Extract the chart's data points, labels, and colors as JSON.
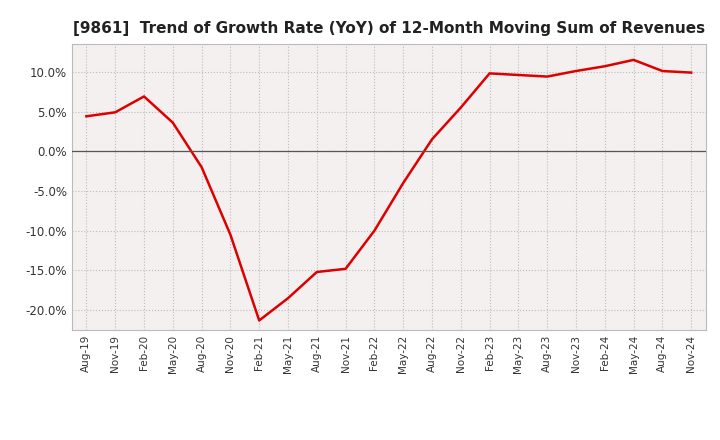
{
  "title": "[9861]  Trend of Growth Rate (YoY) of 12-Month Moving Sum of Revenues",
  "title_fontsize": 11,
  "line_color": "#dd0000",
  "line_width": 1.8,
  "background_color": "#ffffff",
  "plot_bg_color": "#f5f0f0",
  "grid_color": "#bbbbbb",
  "ylim": [
    -0.225,
    0.135
  ],
  "yticks": [
    -0.2,
    -0.15,
    -0.1,
    -0.05,
    0.0,
    0.05,
    0.1
  ],
  "x_labels": [
    "Aug-19",
    "Nov-19",
    "Feb-20",
    "May-20",
    "Aug-20",
    "Nov-20",
    "Feb-21",
    "May-21",
    "Aug-21",
    "Nov-21",
    "Feb-22",
    "May-22",
    "Aug-22",
    "Nov-22",
    "Feb-23",
    "May-23",
    "Aug-23",
    "Nov-23",
    "Feb-24",
    "May-24",
    "Aug-24",
    "Nov-24"
  ],
  "y_values": [
    0.044,
    0.049,
    0.069,
    0.036,
    -0.02,
    -0.105,
    -0.213,
    -0.185,
    -0.152,
    -0.148,
    -0.1,
    -0.04,
    0.015,
    0.055,
    0.098,
    0.096,
    0.094,
    0.101,
    0.107,
    0.115,
    0.101,
    0.099
  ]
}
